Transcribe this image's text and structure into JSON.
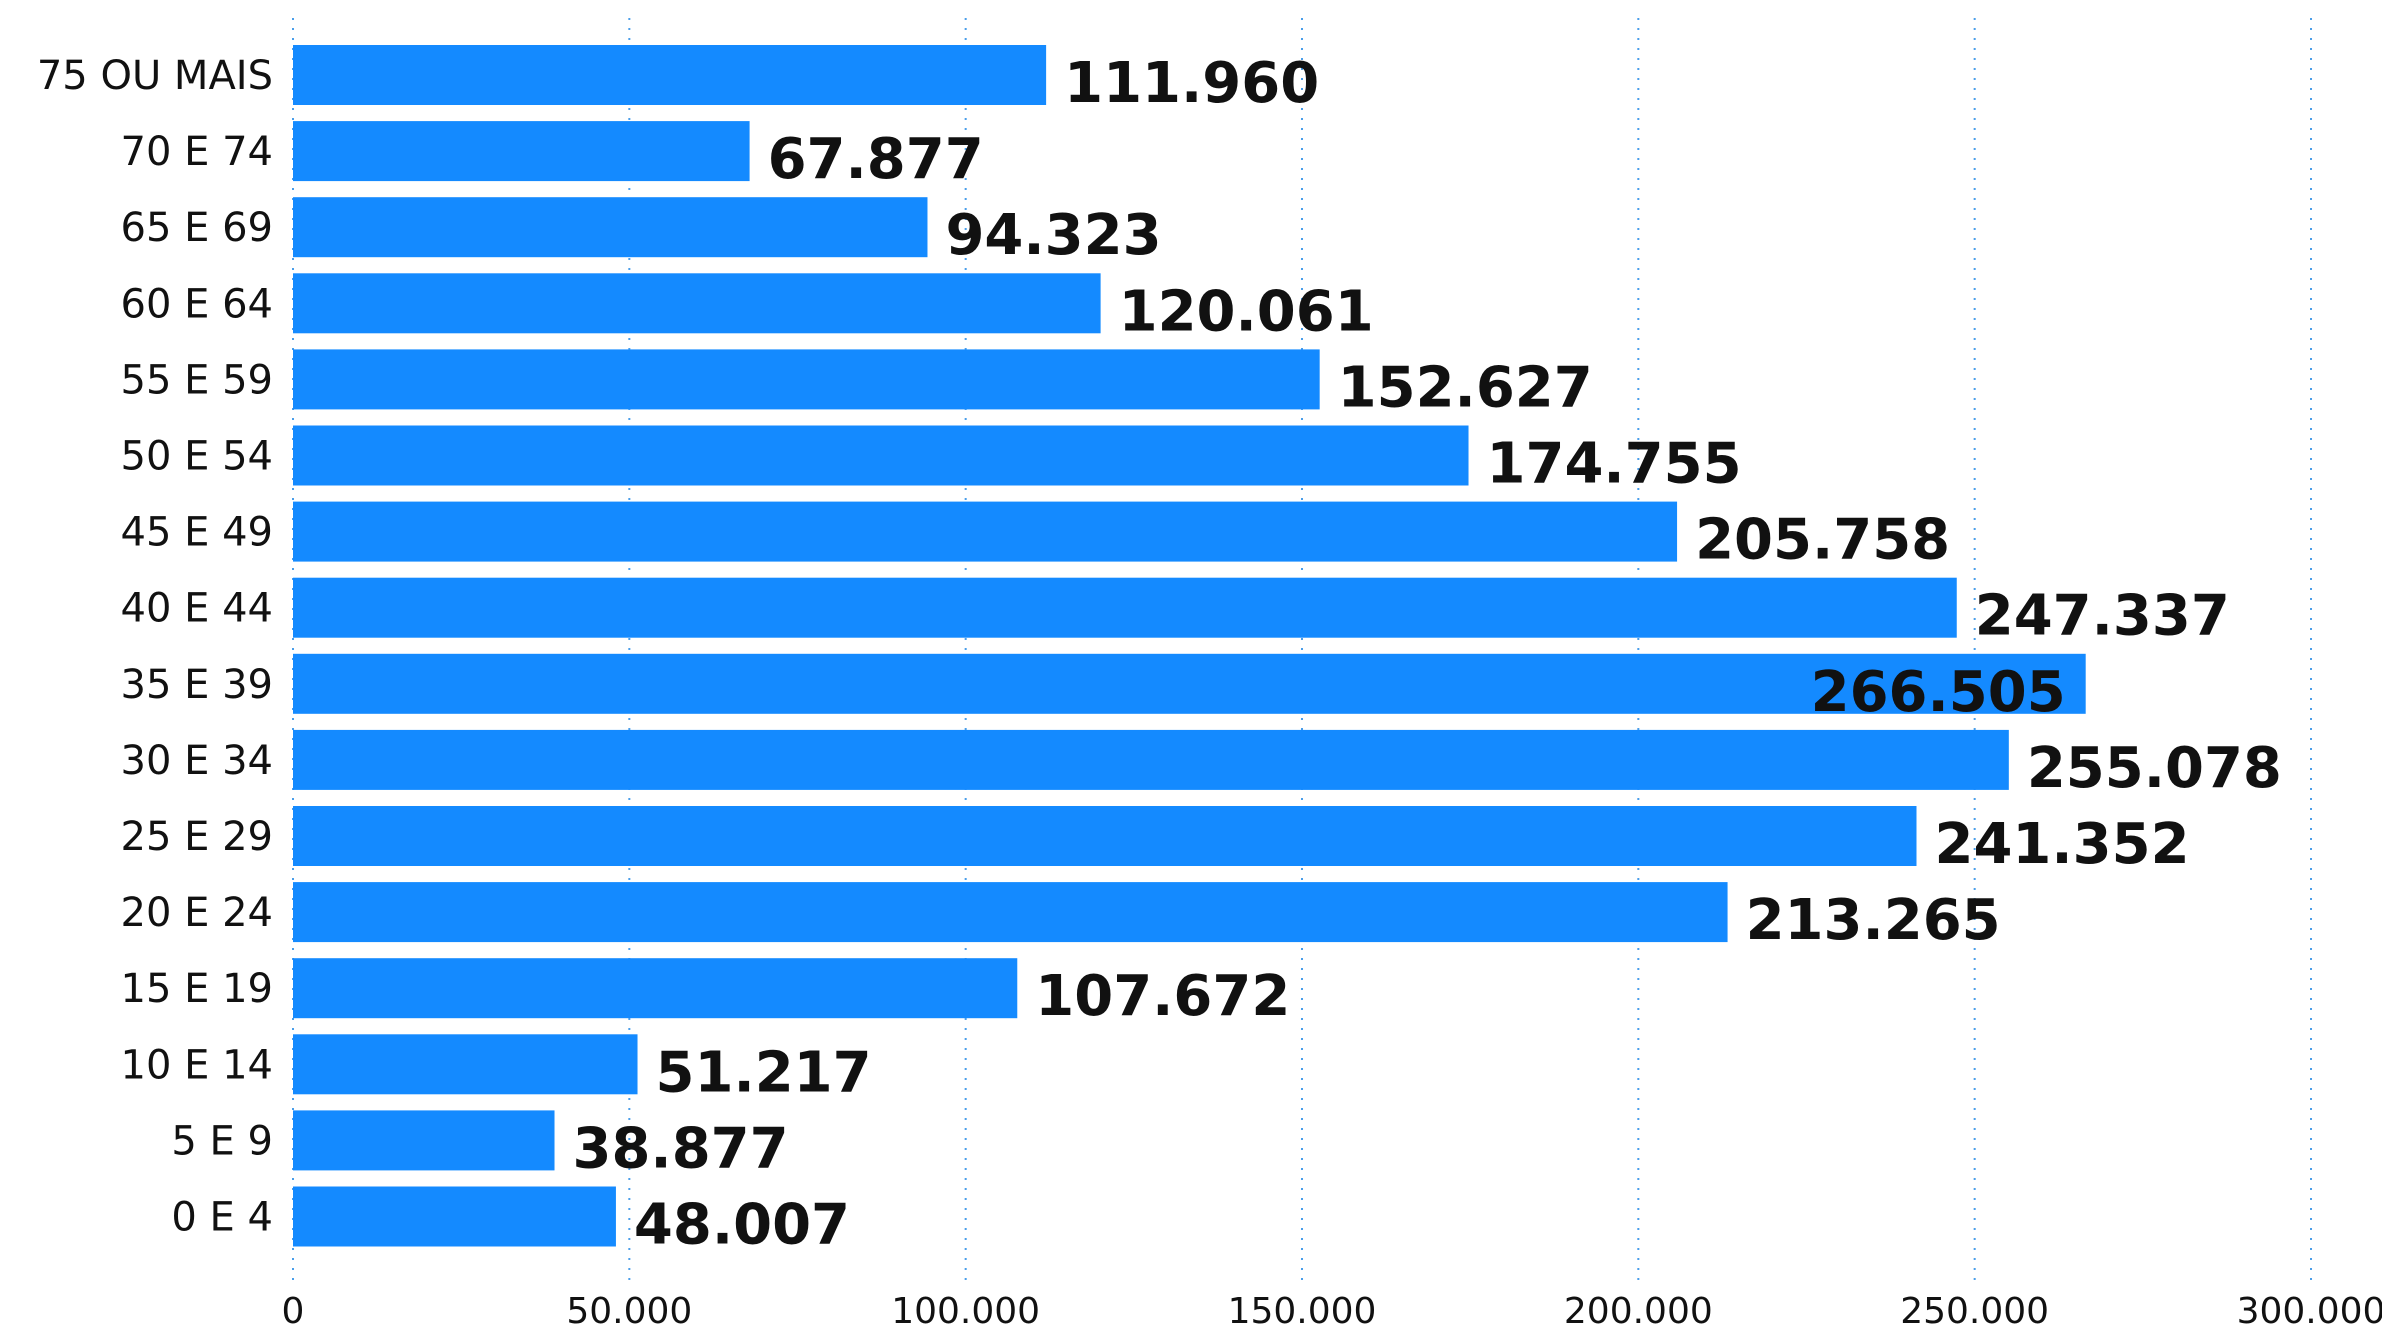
{
  "chart_data": {
    "type": "bar",
    "orientation": "horizontal",
    "title": "",
    "xlabel": "",
    "ylabel": "",
    "categories": [
      "75 OU MAIS",
      "70 E 74",
      "65 E 69",
      "60 E 64",
      "55 E 59",
      "50 E 54",
      "45 E 49",
      "40 E 44",
      "35 E 39",
      "30 E 34",
      "25 E 29",
      "20 E 24",
      "15 E 19",
      "10 E 14",
      "5 E 9",
      "0 E 4"
    ],
    "values": [
      111960,
      67877,
      94323,
      120061,
      152627,
      174755,
      205758,
      247337,
      266505,
      255078,
      241352,
      213265,
      107672,
      51217,
      38877,
      48007
    ],
    "value_labels": [
      "111.960",
      "67.877",
      "94.323",
      "120.061",
      "152.627",
      "174.755",
      "205.758",
      "247.337",
      "266.505",
      "255.078",
      "241.352",
      "213.265",
      "107.672",
      "51.217",
      "38.877",
      "48.007"
    ],
    "xlim": [
      0,
      300000
    ],
    "x_ticks": [
      0,
      50000,
      100000,
      150000,
      200000,
      250000,
      300000
    ],
    "x_tick_labels": [
      "0",
      "50.000",
      "100.000",
      "150.000",
      "200.000",
      "250.000",
      "300.000"
    ],
    "grid": "vertical-dotted",
    "legend": "none",
    "colors": {
      "bar": "#148AFF",
      "grid": "#4A9EEA",
      "text": "#111111"
    }
  }
}
